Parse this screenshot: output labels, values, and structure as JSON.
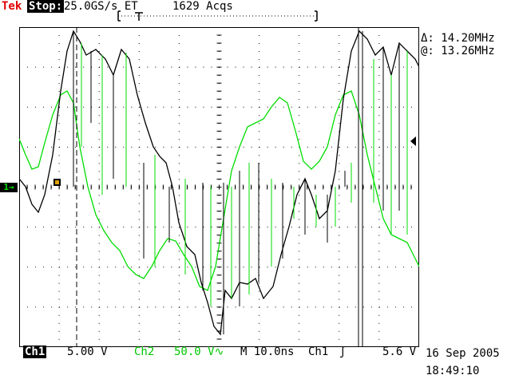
{
  "header": {
    "brand": "Tek",
    "run_state": "Stop:",
    "sample_rate": "25.0GS/s ET",
    "acquisitions": "1629 Acqs"
  },
  "measurements": {
    "delta": "Δ: 14.20MHz",
    "at": "@: 13.26MHz"
  },
  "channel_marker": "1→",
  "footer": {
    "ch1_label": "Ch1",
    "ch1_scale": "5.00 V",
    "ch2_label": "Ch2",
    "ch2_scale": "50.0 V∿",
    "timebase": "M 10.0ns",
    "trigger_source": "Ch1",
    "trigger_slope": "ʃ",
    "trigger_level": "5.6 V",
    "date": "16 Sep 2005",
    "time": "18:49:10"
  },
  "colors": {
    "ch1_trace": "#000000",
    "ch2_trace": "#00dd00",
    "grid": "#000000",
    "brand": "#e00000"
  }
}
